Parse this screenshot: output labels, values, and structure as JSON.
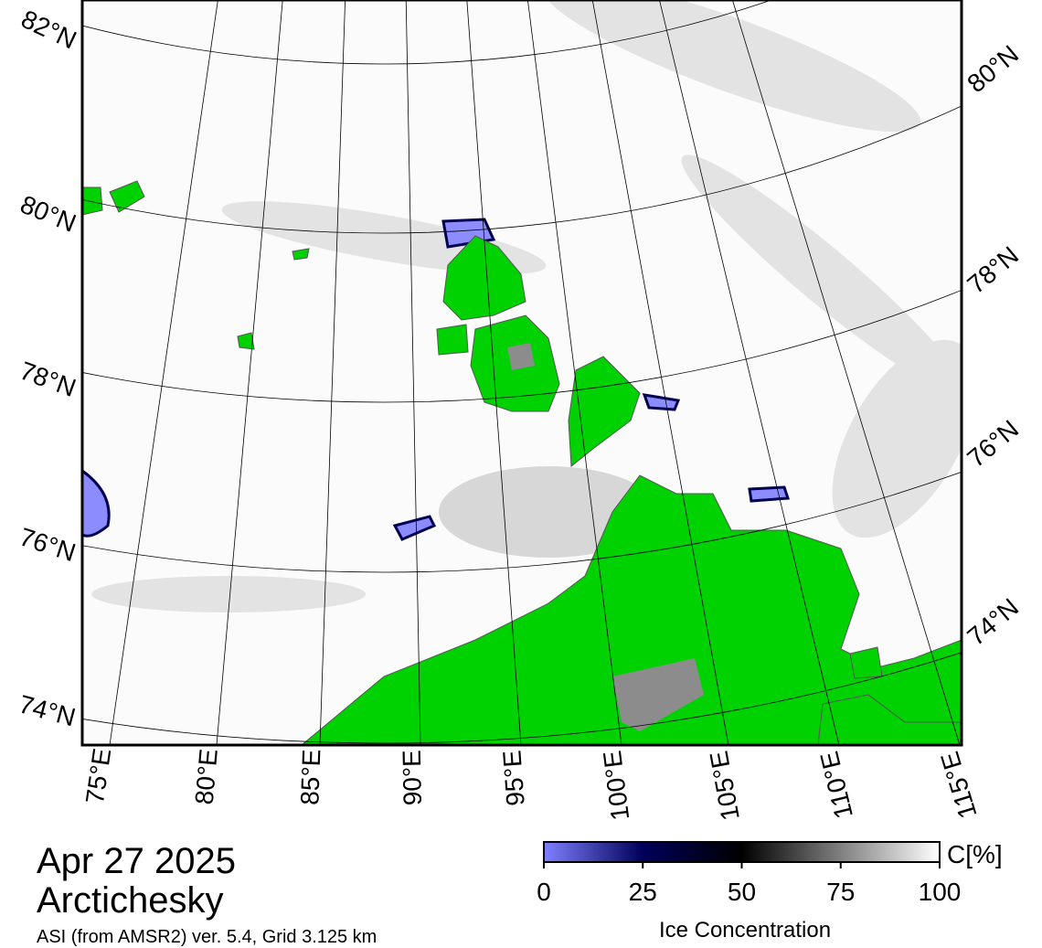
{
  "map": {
    "lat_labels_left": [
      "82°N",
      "80°N",
      "78°N",
      "76°N",
      "74°N"
    ],
    "lat_labels_right": [
      "80°N",
      "78°N",
      "76°N",
      "74°N"
    ],
    "lon_labels": [
      "75°E",
      "80°E",
      "85°E",
      "90°E",
      "95°E",
      "100°E",
      "105°E",
      "110°E",
      "115°E"
    ]
  },
  "caption": {
    "date": "Apr 27 2025",
    "region": "Arctichesky",
    "source": "ASI (from AMSR2) ver. 5.4,  Grid 3.125 km"
  },
  "colorbar": {
    "label": "Ice Concentration",
    "unit": "C[%]",
    "lim": [
      0,
      100
    ],
    "ticks": [
      0,
      25,
      50,
      75,
      100
    ],
    "colors": [
      "#8080ff",
      "#00005a",
      "#000000",
      "#808080",
      "#ffffff"
    ]
  }
}
